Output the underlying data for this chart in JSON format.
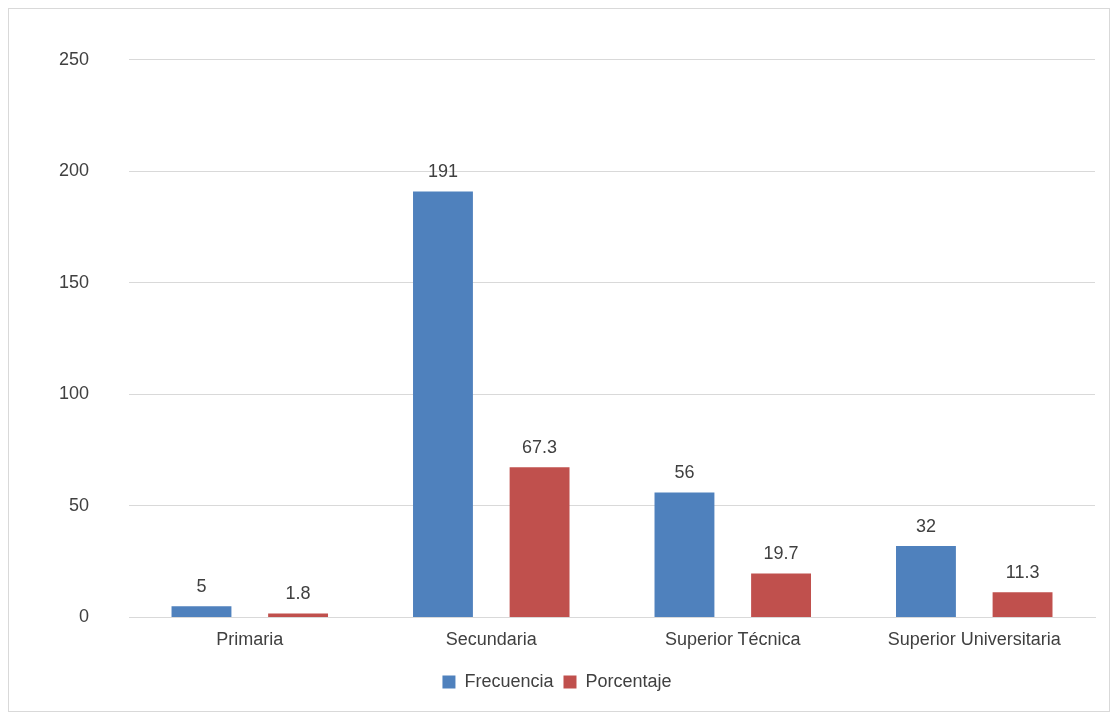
{
  "chart_data": {
    "type": "bar",
    "categories": [
      "Primaria",
      "Secundaria",
      "Superior Técnica",
      "Superior Universitaria"
    ],
    "series": [
      {
        "name": "Frecuencia",
        "color": "#4f81bd",
        "values": [
          5,
          191,
          56,
          32
        ]
      },
      {
        "name": "Porcentaje",
        "color": "#c0504d",
        "values": [
          1.8,
          67.3,
          19.7,
          11.3
        ]
      }
    ],
    "ylim": [
      0,
      250
    ],
    "yticks": [
      0,
      50,
      100,
      150,
      200,
      250
    ],
    "grid": "y",
    "legend": "bottom",
    "data_labels": true
  }
}
